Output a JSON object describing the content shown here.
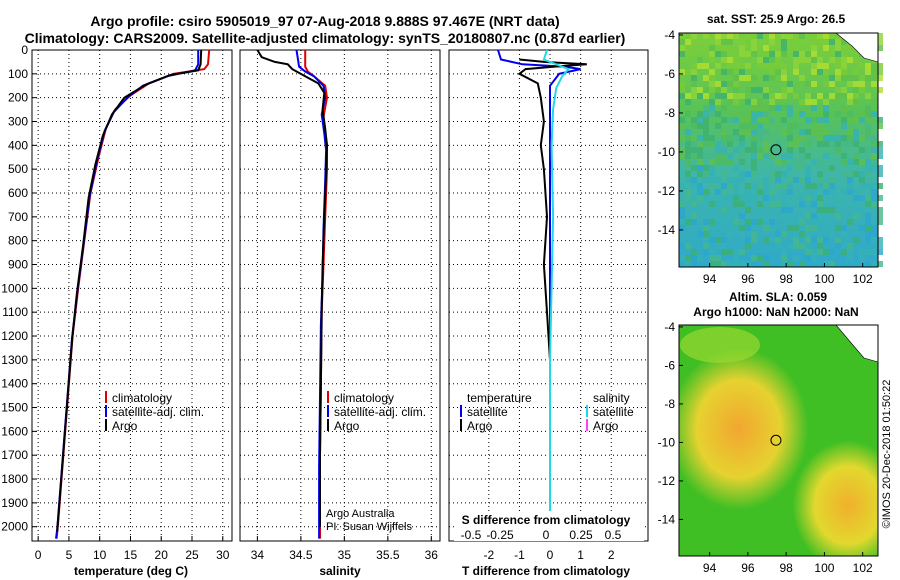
{
  "header": {
    "line1": "Argo profile: csiro 5905019_97 07-Aug-2018 9.888S 97.467E (NRT data)",
    "line2": "Climatology: CARS2009. Satellite-adjusted climatology: synTS_20180807.nc (0.87d earlier)"
  },
  "depth_axis": {
    "ticks": [
      0,
      100,
      200,
      300,
      400,
      500,
      600,
      700,
      800,
      900,
      1000,
      1100,
      1200,
      1300,
      1400,
      1500,
      1600,
      1700,
      1800,
      1900,
      2000
    ],
    "range": [
      0,
      2060
    ]
  },
  "colors": {
    "climatology": "#e00000",
    "satellite": "#0000ee",
    "argo": "#000000",
    "sat_salinity": "#22d8e8",
    "argo_salinity": "#ff40ff"
  },
  "chart_data": [
    {
      "id": "temperature",
      "type": "line",
      "xlabel": "temperature (deg C)",
      "xlim": [
        -1,
        31.5
      ],
      "xticks": [
        0,
        5,
        10,
        15,
        20,
        25,
        30
      ],
      "legend": [
        "climatology",
        "satellite-adj. clim.",
        "Argo"
      ],
      "series": [
        {
          "name": "climatology",
          "color": "#e00000",
          "points": [
            [
              27.8,
              0
            ],
            [
              27.6,
              60
            ],
            [
              27.0,
              80
            ],
            [
              22,
              100
            ],
            [
              18,
              140
            ],
            [
              15,
              190
            ],
            [
              12.5,
              250
            ],
            [
              11,
              330
            ],
            [
              9.8,
              450
            ],
            [
              8.5,
              600
            ],
            [
              7.5,
              800
            ],
            [
              6.5,
              1000
            ],
            [
              5.6,
              1200
            ],
            [
              5.0,
              1400
            ],
            [
              4.4,
              1600
            ],
            [
              3.8,
              1800
            ],
            [
              3.2,
              2000
            ],
            [
              3.0,
              2050
            ]
          ]
        },
        {
          "name": "satellite-adj. clim.",
          "color": "#0000ee",
          "points": [
            [
              26.0,
              0
            ],
            [
              26.0,
              60
            ],
            [
              25.5,
              85
            ],
            [
              21,
              110
            ],
            [
              17,
              150
            ],
            [
              14.5,
              200
            ],
            [
              12.3,
              260
            ],
            [
              10.8,
              340
            ],
            [
              9.6,
              460
            ],
            [
              8.4,
              610
            ],
            [
              7.4,
              810
            ],
            [
              6.4,
              1010
            ],
            [
              5.5,
              1210
            ],
            [
              4.9,
              1410
            ],
            [
              4.3,
              1610
            ],
            [
              3.7,
              1810
            ],
            [
              3.1,
              2010
            ],
            [
              2.9,
              2050
            ]
          ]
        },
        {
          "name": "Argo",
          "color": "#000000",
          "points": [
            [
              26.5,
              0
            ],
            [
              26.4,
              60
            ],
            [
              26,
              85
            ],
            [
              21.5,
              105
            ],
            [
              17.5,
              145
            ],
            [
              14,
              200
            ],
            [
              12,
              270
            ],
            [
              10.5,
              360
            ],
            [
              9.3,
              480
            ],
            [
              8.2,
              620
            ],
            [
              7.3,
              820
            ],
            [
              6.3,
              1020
            ],
            [
              5.5,
              1220
            ],
            [
              4.9,
              1420
            ],
            [
              4.3,
              1620
            ],
            [
              3.7,
              1820
            ],
            [
              3.1,
              2020
            ]
          ]
        }
      ]
    },
    {
      "id": "salinity",
      "type": "line",
      "xlabel": "salinity",
      "xlim": [
        33.8,
        36.1
      ],
      "xticks": [
        34,
        34.5,
        35,
        35.5,
        36
      ],
      "xticklabels": [
        "34",
        "34.5",
        "35",
        "35.5",
        "36"
      ],
      "legend": [
        "climatology",
        "satellite-adj. clim.",
        "Argo"
      ],
      "credit": [
        "Argo Australia",
        "PI: Susan Wijffels"
      ],
      "series": [
        {
          "name": "climatology",
          "color": "#e00000",
          "points": [
            [
              34.55,
              0
            ],
            [
              34.55,
              70
            ],
            [
              34.58,
              90
            ],
            [
              34.65,
              110
            ],
            [
              34.78,
              150
            ],
            [
              34.8,
              200
            ],
            [
              34.76,
              280
            ],
            [
              34.78,
              350
            ],
            [
              34.8,
              400
            ],
            [
              34.8,
              500
            ],
            [
              34.78,
              700
            ],
            [
              34.76,
              900
            ],
            [
              34.74,
              1100
            ],
            [
              34.73,
              1400
            ],
            [
              34.72,
              1700
            ],
            [
              34.72,
              2050
            ]
          ]
        },
        {
          "name": "satellite-adj. clim.",
          "color": "#0000ee",
          "points": [
            [
              34.45,
              0
            ],
            [
              34.48,
              70
            ],
            [
              34.55,
              90
            ],
            [
              34.65,
              110
            ],
            [
              34.76,
              150
            ],
            [
              34.78,
              200
            ],
            [
              34.74,
              270
            ],
            [
              34.77,
              350
            ],
            [
              34.79,
              420
            ],
            [
              34.78,
              550
            ],
            [
              34.76,
              750
            ],
            [
              34.75,
              950
            ],
            [
              34.73,
              1150
            ],
            [
              34.72,
              1450
            ],
            [
              34.71,
              1750
            ],
            [
              34.71,
              2050
            ]
          ]
        },
        {
          "name": "Argo",
          "color": "#000000",
          "points": [
            [
              34.0,
              0
            ],
            [
              34.05,
              30
            ],
            [
              34.2,
              50
            ],
            [
              34.35,
              60
            ],
            [
              34.4,
              80
            ],
            [
              34.55,
              110
            ],
            [
              34.7,
              140
            ],
            [
              34.77,
              180
            ],
            [
              34.75,
              250
            ],
            [
              34.78,
              330
            ],
            [
              34.8,
              400
            ],
            [
              34.79,
              520
            ],
            [
              34.77,
              700
            ],
            [
              34.75,
              900
            ],
            [
              34.74,
              1100
            ],
            [
              34.73,
              1400
            ],
            [
              34.72,
              1700
            ],
            [
              34.72,
              2000
            ]
          ]
        }
      ]
    },
    {
      "id": "difference",
      "type": "line",
      "xlabel": "T difference from climatology",
      "xlim": [
        -3.3,
        3.2
      ],
      "xticks": [
        -2,
        -1,
        0,
        1,
        2
      ],
      "inner_label": "S difference from climatology",
      "inner_ticks": [
        "-0.5",
        "-0.25",
        "0",
        "0.25",
        "0.5"
      ],
      "legend_left": [
        "temperature",
        "satellite",
        "Argo"
      ],
      "legend_right": [
        "salinity",
        "satellite",
        "Argo"
      ],
      "series": [
        {
          "name": "T satellite",
          "color": "#0000ee",
          "points": [
            [
              -1.7,
              0
            ],
            [
              -1.6,
              40
            ],
            [
              -0.9,
              60
            ],
            [
              0.5,
              70
            ],
            [
              1.0,
              80
            ],
            [
              0.3,
              100
            ],
            [
              0.0,
              150
            ],
            [
              0.0,
              300
            ],
            [
              0.0,
              2050
            ]
          ]
        },
        {
          "name": "T Argo",
          "color": "#000000",
          "points": [
            [
              -1.0,
              40
            ],
            [
              -0.2,
              50
            ],
            [
              0.5,
              55
            ],
            [
              1.2,
              60
            ],
            [
              0.3,
              68
            ],
            [
              -0.8,
              80
            ],
            [
              -1.0,
              100
            ],
            [
              -0.4,
              140
            ],
            [
              -0.3,
              200
            ],
            [
              -0.2,
              300
            ],
            [
              -0.3,
              400
            ],
            [
              -0.2,
              500
            ],
            [
              -0.1,
              700
            ],
            [
              -0.2,
              900
            ],
            [
              -0.1,
              1100
            ],
            [
              0.0,
              1300
            ],
            [
              0.0,
              1500
            ],
            [
              0.0,
              2000
            ]
          ]
        },
        {
          "name": "S satellite",
          "color": "#22d8e8",
          "points": [
            [
              -0.1,
              0
            ],
            [
              -0.2,
              40
            ],
            [
              0.2,
              60
            ],
            [
              0.6,
              80
            ],
            [
              0.4,
              110
            ],
            [
              0.2,
              160
            ],
            [
              0.1,
              250
            ],
            [
              0.05,
              400
            ],
            [
              0.1,
              700
            ],
            [
              0.05,
              1000
            ],
            [
              0.0,
              1300
            ],
            [
              0.0,
              2050
            ]
          ]
        }
      ]
    },
    {
      "id": "sst_map",
      "type": "heatmap",
      "title": "sat. SST: 25.9 Argo: 26.5",
      "xticks": [
        94,
        96,
        98,
        100,
        102
      ],
      "yticks": [
        -4,
        -6,
        -8,
        -10,
        -12,
        -14
      ],
      "xlim": [
        92.4,
        102.8
      ],
      "ylim": [
        -15.9,
        -3.9
      ],
      "argo_position": [
        97.467,
        -9.888
      ]
    },
    {
      "id": "sla_map",
      "type": "heatmap",
      "title_line1": "Altim. SLA: 0.059",
      "title_line2": "Argo h1000: NaN h2000: NaN",
      "xticks": [
        94,
        96,
        98,
        100,
        102
      ],
      "yticks": [
        -4,
        -6,
        -8,
        -10,
        -12,
        -14
      ],
      "xlim": [
        92.4,
        102.8
      ],
      "ylim": [
        -15.9,
        -3.9
      ],
      "argo_position": [
        97.467,
        -9.888
      ]
    }
  ],
  "footer": {
    "stamp": "©IMOS 20-Dec-2018 01:50:22"
  }
}
